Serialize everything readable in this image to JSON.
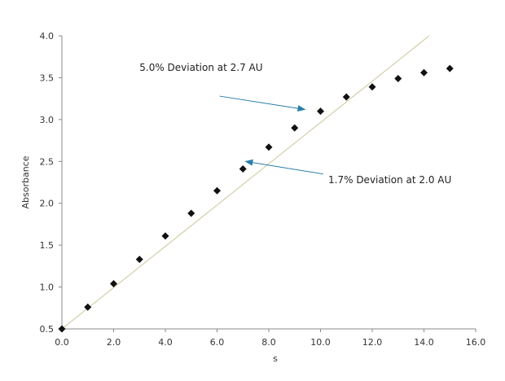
{
  "chart_data": {
    "type": "scatter",
    "title": "",
    "xlabel": "s",
    "ylabel": "Absorbance",
    "xlim": [
      0,
      16
    ],
    "ylim": [
      0.5,
      4.0
    ],
    "x_ticks": [
      0,
      2,
      4,
      6,
      8,
      10,
      12,
      14,
      16
    ],
    "x_tick_labels": [
      "0.0",
      "2.0",
      "4.0",
      "6.0",
      "8.0",
      "10.0",
      "12.0",
      "14.0",
      "16.0"
    ],
    "y_ticks": [
      0.5,
      1.0,
      1.5,
      2.0,
      2.5,
      3.0,
      3.5,
      4.0
    ],
    "y_tick_labels": [
      "0.5",
      "1.0",
      "1.5",
      "2.0",
      "2.5",
      "3.0",
      "3.5",
      "4.0"
    ],
    "grid": false,
    "series": [
      {
        "marker": "diamond",
        "color": "#111111",
        "x": [
          0,
          1,
          2,
          3,
          4,
          5,
          6,
          7,
          8,
          9,
          10,
          11,
          12,
          13,
          14,
          15
        ],
        "y": [
          0.5,
          0.76,
          1.04,
          1.33,
          1.61,
          1.88,
          2.15,
          2.41,
          2.67,
          2.9,
          3.1,
          3.27,
          3.39,
          3.49,
          3.56,
          3.61
        ]
      }
    ],
    "reference_line": {
      "color": "#d4cfa8",
      "x": [
        0,
        14.2
      ],
      "y": [
        0.5,
        4.0
      ]
    },
    "annotations": [
      {
        "text": "5.0% Deviation at 2.7 AU",
        "arrow_color": "#2a7fa8",
        "text_at": [
          3.0,
          3.62
        ],
        "arrow_from": [
          6.1,
          3.28
        ],
        "arrow_to": [
          9.4,
          3.12
        ]
      },
      {
        "text": "1.7% Deviation at 2.0 AU",
        "arrow_color": "#2a7fa8",
        "text_at": [
          10.3,
          2.28
        ],
        "arrow_from": [
          10.1,
          2.35
        ],
        "arrow_to": [
          7.1,
          2.5
        ]
      }
    ]
  }
}
